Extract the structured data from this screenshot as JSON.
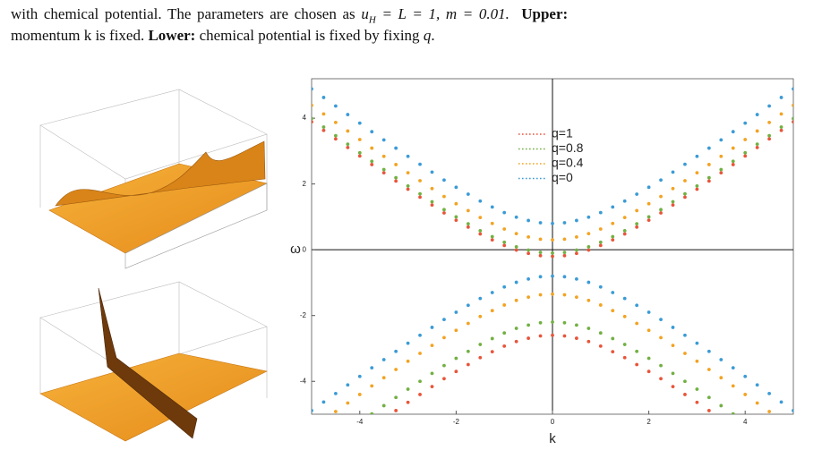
{
  "caption": {
    "line1": "with chemical potential.  The parameters are chosen as",
    "math_u": "u",
    "math_sub": "H",
    "math_rest": "= L = 1, m = 0.01.",
    "upper_label": "Upper:",
    "line2_start": "momentum k is fixed.",
    "lower_label": "Lower:",
    "line2_end": "chemical potential is fixed by fixing",
    "line2_var": "q",
    "line2_period": "."
  },
  "chart_data": {
    "type": "scatter",
    "x_label": "k",
    "y_label": "ω",
    "xlim": [
      -5,
      5
    ],
    "ylim": [
      -5,
      5.2
    ],
    "xticks": [
      -4,
      -2,
      0,
      2,
      4
    ],
    "yticks": [
      -4,
      -2,
      0,
      2,
      4
    ],
    "legend_position": "top-center",
    "x": [
      -5,
      -4.75,
      -4.5,
      -4.25,
      -4,
      -3.75,
      -3.5,
      -3.25,
      -3,
      -2.75,
      -2.5,
      -2.25,
      -2,
      -1.75,
      -1.5,
      -1.25,
      -1,
      -0.75,
      -0.5,
      -0.25,
      0,
      0.25,
      0.5,
      0.75,
      1,
      1.25,
      1.5,
      1.75,
      2,
      2.25,
      2.5,
      2.75,
      3,
      3.25,
      3.5,
      3.75,
      4,
      4.25,
      4.5,
      4.75,
      5
    ],
    "series": [
      {
        "name": "q=1",
        "color": "#e8553a",
        "values": [
          3.89,
          3.63,
          3.37,
          3.11,
          2.85,
          2.59,
          2.34,
          2.09,
          1.84,
          1.6,
          1.36,
          1.12,
          0.9,
          0.69,
          0.48,
          0.3,
          0.13,
          -0.01,
          -0.11,
          -0.18,
          -0.2,
          -0.18,
          -0.11,
          -0.01,
          0.13,
          0.3,
          0.48,
          0.69,
          0.9,
          1.12,
          1.36,
          1.6,
          1.84,
          2.09,
          2.34,
          2.59,
          2.85,
          3.11,
          3.37,
          3.63,
          3.89
        ],
        "lower_values": [
          null,
          null,
          null,
          null,
          null,
          null,
          null,
          -4.89,
          -4.64,
          -4.4,
          -4.16,
          -3.92,
          -3.7,
          -3.49,
          -3.28,
          -3.1,
          -2.93,
          -2.79,
          -2.69,
          -2.62,
          -2.6,
          -2.62,
          -2.69,
          -2.79,
          -2.93,
          -3.1,
          -3.28,
          -3.49,
          -3.7,
          -3.92,
          -4.16,
          -4.4,
          -4.64,
          -4.89,
          null,
          null,
          null,
          null,
          null,
          null,
          null
        ]
      },
      {
        "name": "q=0.8",
        "color": "#72b043",
        "values": [
          3.99,
          3.73,
          3.47,
          3.21,
          2.95,
          2.69,
          2.44,
          2.19,
          1.94,
          1.7,
          1.46,
          1.22,
          1.0,
          0.79,
          0.58,
          0.4,
          0.23,
          0.09,
          -0.01,
          -0.08,
          -0.1,
          -0.08,
          -0.01,
          0.09,
          0.23,
          0.4,
          0.58,
          0.79,
          1.0,
          1.22,
          1.46,
          1.7,
          1.94,
          2.19,
          2.44,
          2.69,
          2.95,
          3.21,
          3.47,
          3.73,
          3.99
        ],
        "lower_values": [
          null,
          null,
          null,
          null,
          null,
          -4.99,
          -4.74,
          -4.49,
          -4.24,
          -4.0,
          -3.76,
          -3.52,
          -3.3,
          -3.09,
          -2.88,
          -2.7,
          -2.53,
          -2.39,
          -2.29,
          -2.22,
          -2.2,
          -2.22,
          -2.29,
          -2.39,
          -2.53,
          -2.7,
          -2.88,
          -3.09,
          -3.3,
          -3.52,
          -3.76,
          -4.0,
          -4.24,
          -4.49,
          -4.74,
          -4.99,
          null,
          null,
          null,
          null,
          null
        ]
      },
      {
        "name": "q=0.4",
        "color": "#f2a322",
        "values": [
          4.39,
          4.13,
          3.87,
          3.61,
          3.35,
          3.09,
          2.84,
          2.59,
          2.34,
          2.1,
          1.86,
          1.62,
          1.4,
          1.19,
          0.98,
          0.8,
          0.63,
          0.49,
          0.39,
          0.32,
          0.3,
          0.32,
          0.39,
          0.49,
          0.63,
          0.8,
          0.98,
          1.19,
          1.4,
          1.62,
          1.86,
          2.1,
          2.34,
          2.59,
          2.84,
          3.09,
          3.35,
          3.61,
          3.87,
          4.13,
          4.39
        ],
        "lower_values": [
          null,
          null,
          -4.92,
          -4.66,
          -4.4,
          -4.14,
          -3.89,
          -3.64,
          -3.39,
          -3.15,
          -2.91,
          -2.67,
          -2.45,
          -2.24,
          -2.03,
          -1.85,
          -1.68,
          -1.54,
          -1.44,
          -1.37,
          -1.35,
          -1.37,
          -1.44,
          -1.54,
          -1.68,
          -1.85,
          -2.03,
          -2.24,
          -2.45,
          -2.67,
          -2.91,
          -3.15,
          -3.39,
          -3.64,
          -3.89,
          -4.14,
          -4.4,
          -4.66,
          -4.92,
          null,
          null
        ]
      },
      {
        "name": "q=0",
        "color": "#3b9bd6",
        "values": [
          4.89,
          4.63,
          4.37,
          4.11,
          3.85,
          3.59,
          3.34,
          3.09,
          2.84,
          2.6,
          2.36,
          2.12,
          1.9,
          1.69,
          1.48,
          1.3,
          1.13,
          0.99,
          0.89,
          0.82,
          0.8,
          0.82,
          0.89,
          0.99,
          1.13,
          1.3,
          1.48,
          1.69,
          1.9,
          2.12,
          2.36,
          2.6,
          2.84,
          3.09,
          3.34,
          3.59,
          3.85,
          4.11,
          4.37,
          4.63,
          4.89
        ],
        "lower_values": [
          -4.89,
          -4.63,
          -4.37,
          -4.11,
          -3.85,
          -3.59,
          -3.34,
          -3.09,
          -2.84,
          -2.6,
          -2.36,
          -2.12,
          -1.9,
          -1.69,
          -1.48,
          -1.3,
          -1.13,
          -0.99,
          -0.89,
          -0.82,
          -0.8,
          -0.82,
          -0.89,
          -0.99,
          -1.13,
          -1.3,
          -1.48,
          -1.69,
          -1.9,
          -2.12,
          -2.36,
          -2.6,
          -2.84,
          -3.09,
          -3.34,
          -3.59,
          -3.85,
          -4.11,
          -4.37,
          -4.63,
          -4.89
        ]
      }
    ]
  }
}
